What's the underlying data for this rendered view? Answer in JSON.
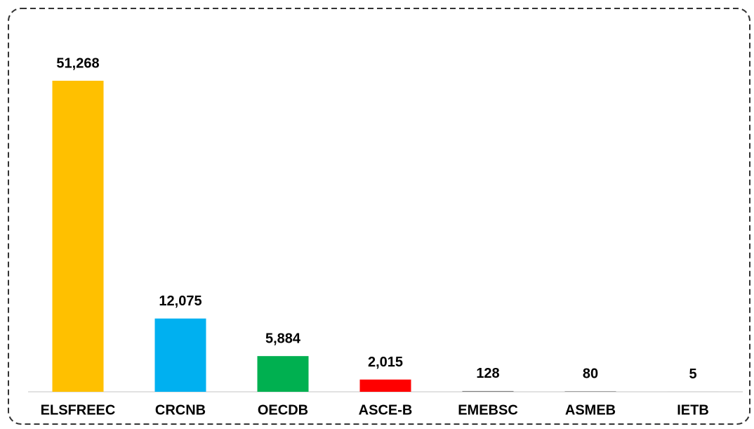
{
  "chart_data": {
    "type": "bar",
    "categories": [
      "ELSFREEC",
      "CRCNB",
      "OECDB",
      "ASCE-B",
      "EMEBSC",
      "ASMEB",
      "IETB"
    ],
    "values": [
      51268,
      12075,
      5884,
      2015,
      128,
      80,
      5
    ],
    "value_labels": [
      "51,268",
      "12,075",
      "5,884",
      "2,015",
      "128",
      "80",
      "5"
    ],
    "colors": [
      "#FFC000",
      "#00B0F0",
      "#00B050",
      "#FF0000",
      "#7F7F7F",
      "#7F7F7F",
      "#7F7F7F"
    ]
  }
}
